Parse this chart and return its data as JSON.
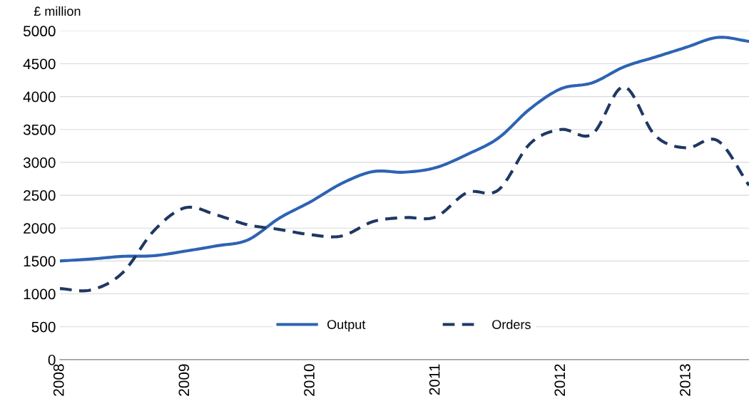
{
  "chart_data": {
    "type": "line",
    "ylabel": "£ million",
    "x": [
      2008.0,
      2008.25,
      2008.5,
      2008.75,
      2009.0,
      2009.25,
      2009.5,
      2009.75,
      2010.0,
      2010.25,
      2010.5,
      2010.75,
      2011.0,
      2011.25,
      2011.5,
      2011.75,
      2012.0,
      2012.25,
      2012.5,
      2012.75,
      2013.0,
      2013.25,
      2013.5
    ],
    "series": [
      {
        "name": "Output",
        "color": "#2e63b4",
        "line_style": "solid",
        "values": [
          1500,
          1530,
          1570,
          1580,
          1650,
          1730,
          1820,
          2150,
          2400,
          2680,
          2860,
          2850,
          2920,
          3120,
          3370,
          3810,
          4120,
          4210,
          4450,
          4600,
          4750,
          4900,
          4840
        ]
      },
      {
        "name": "Orders",
        "color": "#1f3864",
        "line_style": "dashed",
        "values": [
          1080,
          1060,
          1320,
          1960,
          2310,
          2200,
          2050,
          1980,
          1900,
          1880,
          2100,
          2160,
          2170,
          2540,
          2580,
          3280,
          3500,
          3430,
          4150,
          3410,
          3220,
          3330,
          2650
        ]
      }
    ],
    "xlim": [
      2008,
      2013.5
    ],
    "xticks": [
      2008,
      2009,
      2010,
      2011,
      2012,
      2013
    ],
    "ylim": [
      0,
      5000
    ],
    "yticks": [
      0,
      500,
      1000,
      1500,
      2000,
      2500,
      3000,
      3500,
      4000,
      4500,
      5000
    ],
    "grid": "y",
    "legend": "bottom",
    "marker": "none"
  }
}
